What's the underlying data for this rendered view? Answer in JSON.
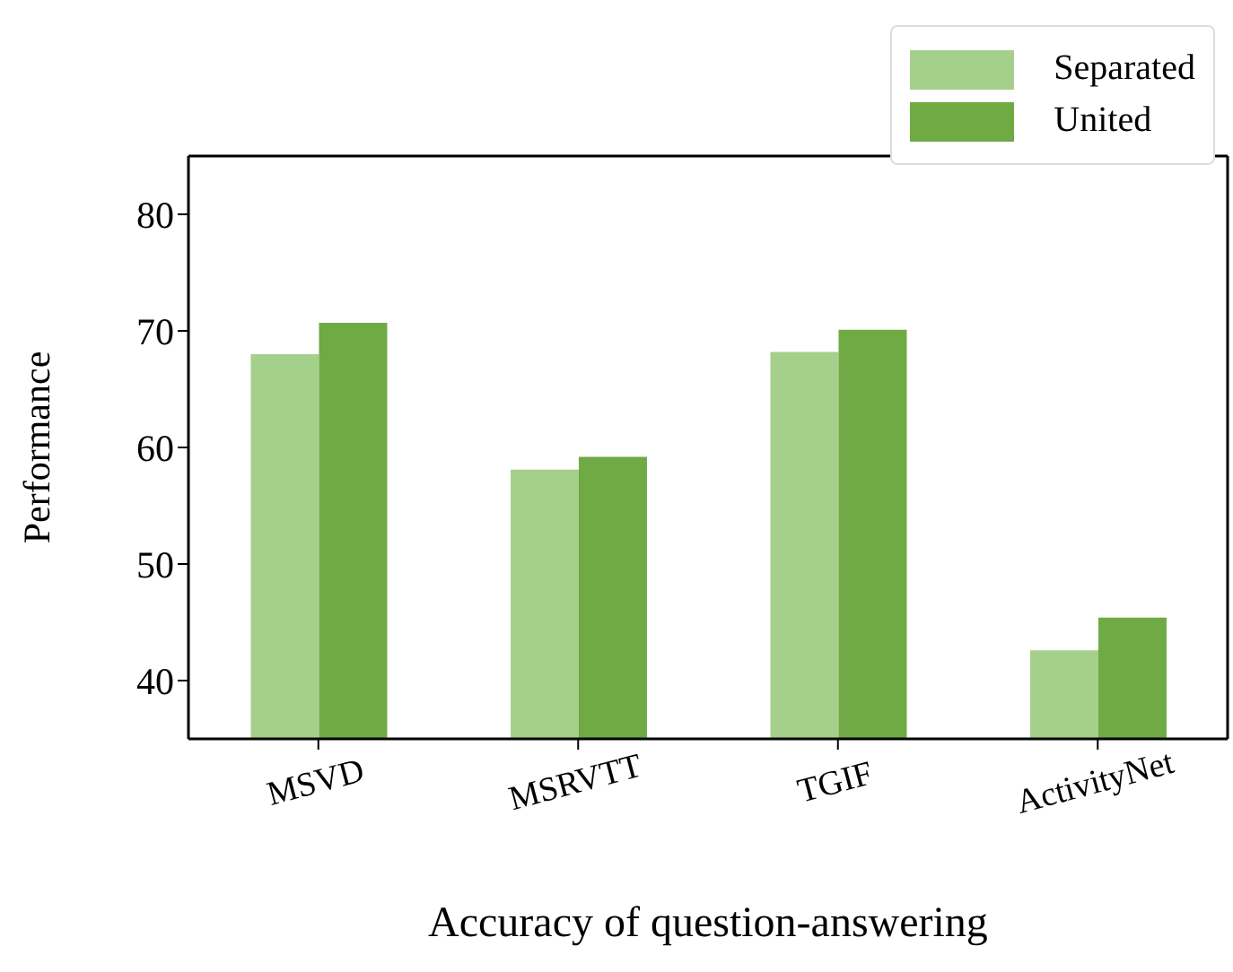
{
  "chart_data": {
    "type": "bar",
    "xlabel": "Accuracy of question-answering",
    "ylabel": "Performance",
    "categories": [
      "MSVD",
      "MSRVTT",
      "TGIF",
      "ActivityNet"
    ],
    "series": [
      {
        "name": "Separated",
        "color": "#a5d08b",
        "values": [
          68.0,
          58.1,
          68.2,
          42.6
        ]
      },
      {
        "name": "United",
        "color": "#6faa45",
        "values": [
          70.7,
          59.2,
          70.1,
          45.4
        ]
      }
    ],
    "ylim": [
      35,
      85
    ],
    "yticks": [
      40,
      50,
      60,
      70,
      80
    ],
    "grid": false,
    "legend": "top right"
  }
}
